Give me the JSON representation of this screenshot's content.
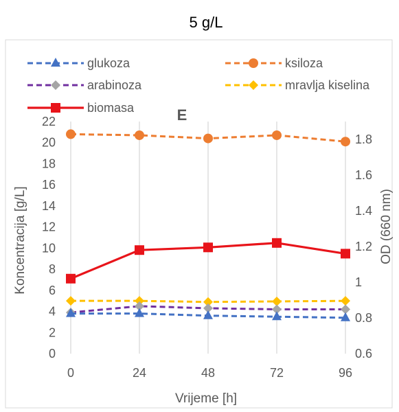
{
  "header": {
    "title": "5 g/L"
  },
  "chart_data": {
    "type": "line",
    "panel_label": "E",
    "xlabel": "Vrijeme [h]",
    "ylabel_left": "Koncentracija [g/L]",
    "ylabel_right": "OD (660 nm)",
    "x": [
      0,
      24,
      48,
      72,
      96
    ],
    "x_tick_labels": [
      "0",
      "24",
      "48",
      "72",
      "96"
    ],
    "y_left_lim": [
      0,
      22
    ],
    "y_left_ticks": [
      0,
      2,
      4,
      6,
      8,
      10,
      12,
      14,
      16,
      18,
      20,
      22
    ],
    "y_right_lim": [
      0.6,
      1.9
    ],
    "y_right_ticks": [
      0.6,
      0.8,
      1,
      1.2,
      1.4,
      1.6,
      1.8
    ],
    "grid": "vertical",
    "legend_position": "top",
    "series": [
      {
        "name": "glukoza",
        "axis": "left",
        "color": "#4472c4",
        "marker": "triangle",
        "dashed": true,
        "values": [
          3.8,
          3.8,
          3.6,
          3.5,
          3.4
        ]
      },
      {
        "name": "ksiloza",
        "axis": "left",
        "color": "#ed7d31",
        "marker": "circle",
        "dashed": true,
        "values": [
          20.8,
          20.7,
          20.4,
          20.7,
          20.1
        ]
      },
      {
        "name": "arabinoza",
        "axis": "left",
        "color": "#7030a0",
        "marker": "diamond",
        "dashed": true,
        "marker_color": "#a5a5a5",
        "values": [
          3.9,
          4.5,
          4.3,
          4.2,
          4.2
        ]
      },
      {
        "name": "mravlja kiselina",
        "axis": "left",
        "color": "#ffc000",
        "marker": "diamond",
        "dashed": true,
        "values": [
          5.0,
          5.0,
          4.9,
          4.95,
          5.0
        ]
      },
      {
        "name": "biomasa",
        "axis": "right",
        "color": "#e8141a",
        "marker": "square",
        "dashed": false,
        "values": [
          1.02,
          1.18,
          1.195,
          1.22,
          1.16
        ]
      }
    ]
  }
}
